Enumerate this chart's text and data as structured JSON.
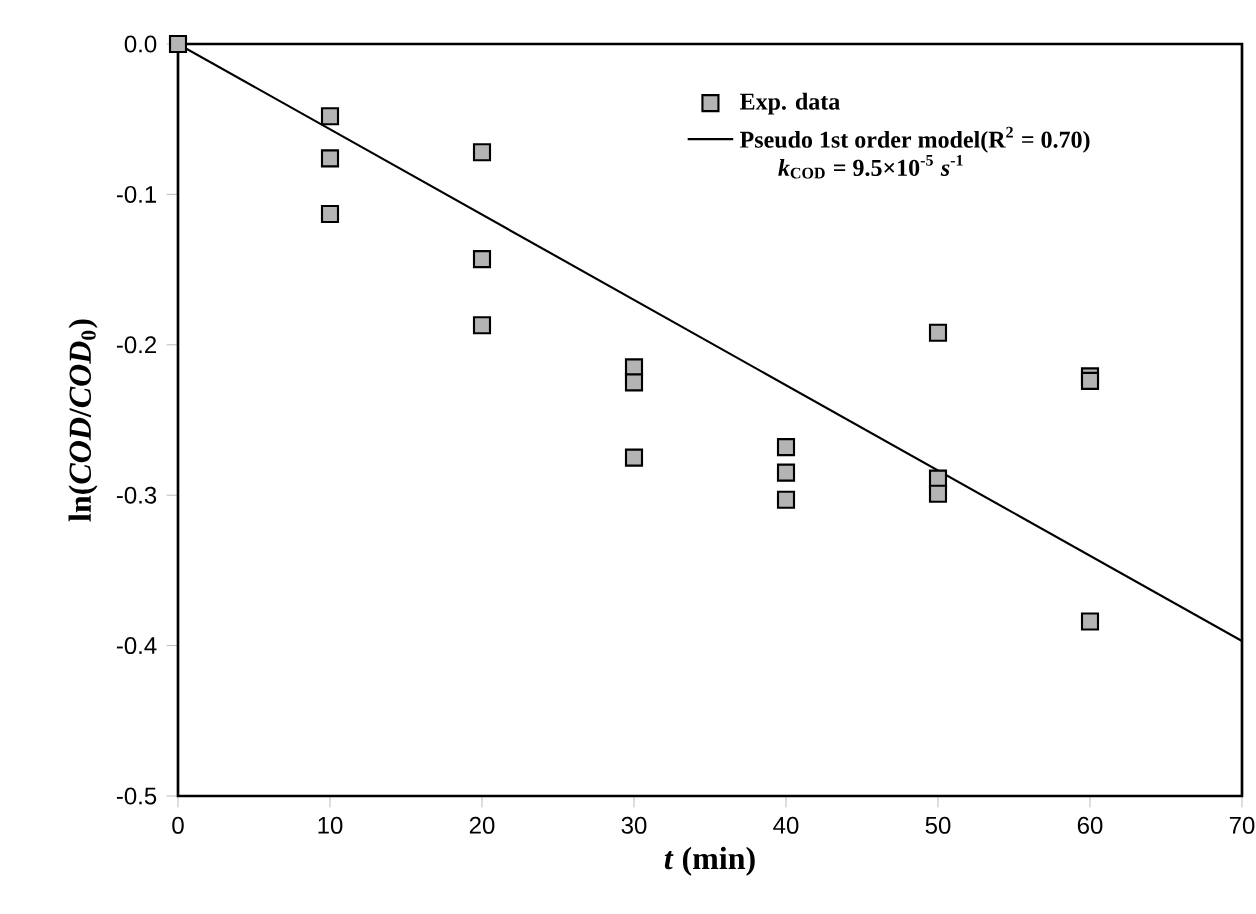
{
  "chart_data": {
    "type": "scatter",
    "xlabel": "*t* (min)",
    "ylabel": "ln(*COD*/*COD*$_{0}$)",
    "xlim": [
      0,
      70
    ],
    "xticks": [
      0,
      10,
      20,
      30,
      40,
      50,
      60,
      70
    ],
    "ylim": [
      -0.5,
      0.0
    ],
    "yticks": [
      {
        "value": -0.5,
        "label": "-0.5"
      },
      {
        "value": -0.4,
        "label": "-0.4"
      },
      {
        "value": -0.3,
        "label": "-0.3"
      },
      {
        "value": -0.2,
        "label": "-0.2"
      },
      {
        "value": -0.1,
        "label": "-0.1"
      },
      {
        "value": 0.0,
        "label": "0.0"
      }
    ],
    "grid": false,
    "legend": "top right",
    "annotations": [
      "*k*$_{COD}$ = 9.5×10$^{-5}$ *s*$^{-1}$"
    ],
    "series": [
      {
        "name": "Exp. data",
        "marker": "square",
        "color": "#b4b4b4",
        "x": [
          0,
          10,
          10,
          10,
          20,
          20,
          20,
          30,
          30,
          30,
          40,
          40,
          40,
          50,
          50,
          50,
          60,
          60,
          60
        ],
        "values": [
          0.0,
          -0.048,
          -0.076,
          -0.113,
          -0.072,
          -0.143,
          -0.187,
          -0.215,
          -0.225,
          -0.275,
          -0.268,
          -0.285,
          -0.303,
          -0.192,
          -0.289,
          -0.299,
          -0.221,
          -0.224,
          -0.384
        ]
      },
      {
        "name": "Pseudo 1st order model(R$^{2}$ = 0.70)",
        "type": "line",
        "color": "#000000",
        "x": [
          0,
          70
        ],
        "values": [
          0.0,
          -0.397
        ]
      }
    ]
  }
}
